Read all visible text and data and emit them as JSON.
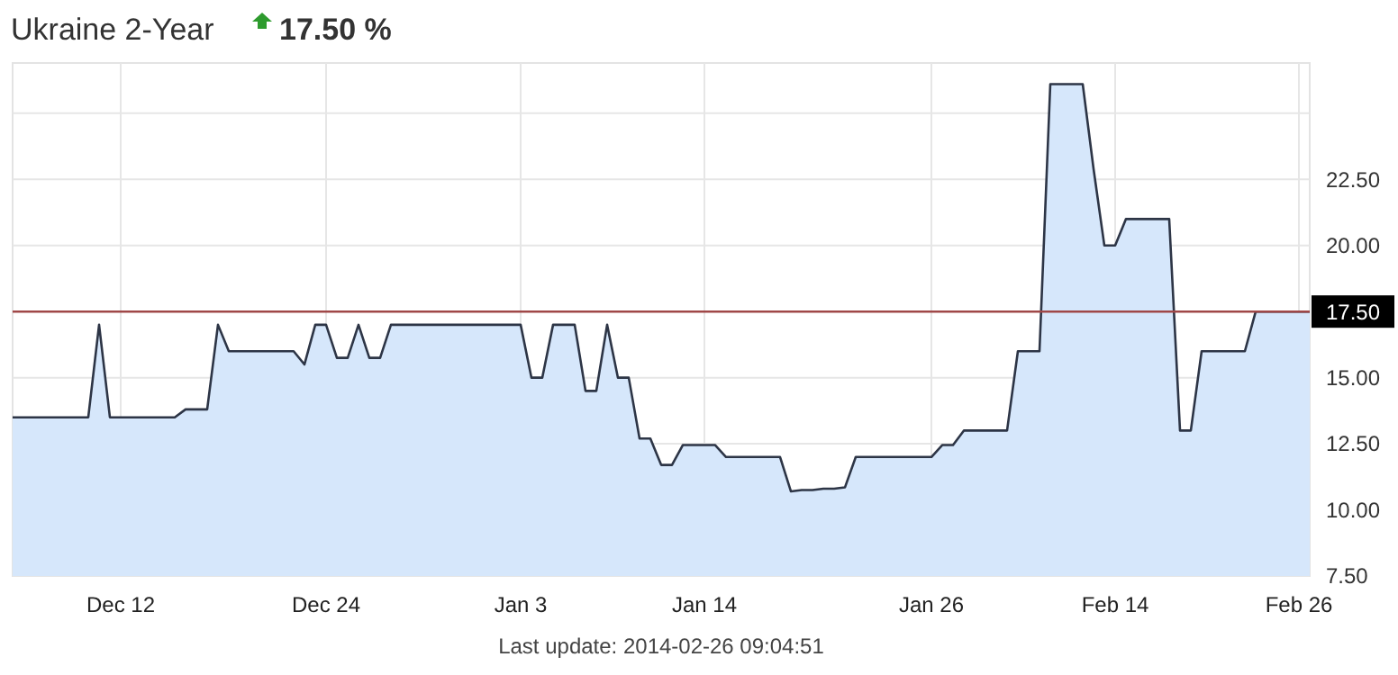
{
  "chart_data": {
    "type": "area",
    "title": "Ukraine 2-Year",
    "subtitle": "17.50 %",
    "categories": [
      null,
      null,
      null,
      null,
      null,
      null,
      null,
      null,
      null,
      null,
      "Dec 12",
      null,
      null,
      null,
      null,
      null,
      null,
      null,
      null,
      null,
      null,
      null,
      null,
      null,
      null,
      null,
      null,
      null,
      null,
      "Dec 24",
      null,
      null,
      null,
      null,
      null,
      null,
      null,
      null,
      null,
      null,
      null,
      null,
      null,
      null,
      null,
      null,
      null,
      "Jan 3",
      null,
      null,
      null,
      null,
      null,
      null,
      null,
      null,
      null,
      null,
      null,
      null,
      null,
      null,
      null,
      null,
      "Jan 14",
      null,
      null,
      null,
      null,
      null,
      null,
      null,
      null,
      null,
      null,
      null,
      null,
      null,
      null,
      null,
      null,
      null,
      null,
      null,
      null,
      "Jan 26",
      null,
      null,
      null,
      null,
      null,
      null,
      null,
      null,
      null,
      null,
      null,
      null,
      null,
      null,
      null,
      null,
      "Feb 14",
      null,
      null,
      null,
      null,
      null,
      null,
      null,
      null,
      null,
      null,
      null,
      null,
      null,
      null,
      null,
      null,
      "Feb 26",
      null
    ],
    "series": [
      {
        "color": "#2d3546",
        "values": [
          13.5,
          13.5,
          13.5,
          13.5,
          13.5,
          13.5,
          13.5,
          13.5,
          17,
          13.5,
          13.5,
          13.5,
          13.5,
          13.5,
          13.5,
          13.5,
          13.8,
          13.8,
          13.8,
          17,
          16,
          16,
          16,
          16,
          16,
          16,
          16,
          15.5,
          17,
          17,
          15.75,
          15.75,
          17,
          15.75,
          15.75,
          17,
          17,
          17,
          17,
          17,
          17,
          17,
          17,
          17,
          17,
          17,
          17,
          17,
          15,
          15,
          17,
          17,
          17,
          14.5,
          14.5,
          17,
          15,
          15,
          12.7,
          12.7,
          11.7,
          11.7,
          12.45,
          12.45,
          12.45,
          12.45,
          12,
          12,
          12,
          12,
          12,
          12,
          10.7,
          10.75,
          10.75,
          10.8,
          10.8,
          10.85,
          12,
          12,
          12,
          12,
          12,
          12,
          12,
          12,
          12.45,
          12.45,
          13,
          13,
          13,
          13,
          13,
          16,
          16,
          16,
          26.1,
          26.1,
          26.1,
          26.1,
          22.9,
          20,
          20,
          21,
          21,
          21,
          21,
          21,
          13,
          13,
          16,
          16,
          16,
          16,
          16,
          17.5,
          17.5,
          17.5,
          17.5,
          17.5,
          17.5
        ]
      }
    ],
    "ylim": [
      7.5,
      26.9
    ],
    "yticks": [
      {
        "value": 7.5,
        "label": "7.50"
      },
      {
        "value": 10,
        "label": "10.00"
      },
      {
        "value": 12.5,
        "label": "12.50"
      },
      {
        "value": 15,
        "label": "15.00"
      },
      {
        "value": 20,
        "label": "20.00"
      },
      {
        "value": 22.5,
        "label": "22.50"
      },
      {
        "value": 25,
        "label": null
      }
    ],
    "grid": true,
    "ref_lines": [
      {
        "axis": "y",
        "value": 17.5,
        "label": "17.50",
        "color": "#a04848"
      }
    ],
    "annotations": [
      "Last update: 2014-02-26 09:04:51"
    ]
  }
}
